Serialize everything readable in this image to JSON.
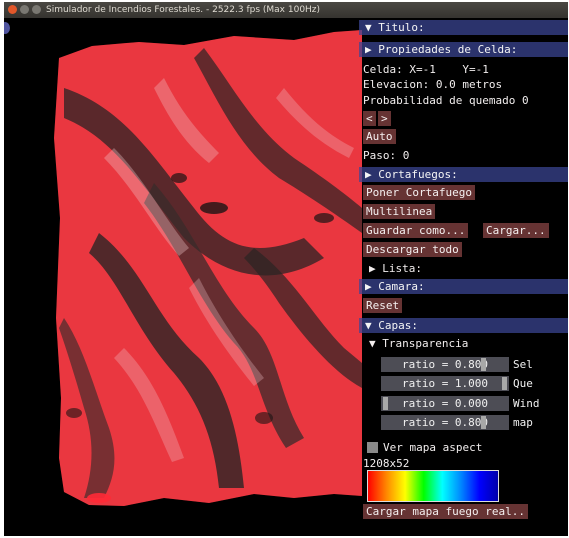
{
  "window": {
    "title": "Simulador de Incendios Forestales. - 2522.3 fps (Max 100Hz)"
  },
  "panel": {
    "header": "▼ Titulo:",
    "cell_props": {
      "header": "▶ Propiedades de Celda:",
      "cell": "Celda: X=-1    Y=-1",
      "elevation": "Elevacion: 0.0 metros",
      "burn_prob": "Probabilidad de quemado 0",
      "prev": "<",
      "next": ">",
      "auto": "Auto",
      "step": "Paso: 0"
    },
    "firebreaks": {
      "header": "▶ Cortafuegos:",
      "put": "Poner Cortafuego",
      "multiline": "Multilinea",
      "save_as": "Guardar como...",
      "load": "Cargar...",
      "download_all": "Descargar todo",
      "list": "▶ Lista:"
    },
    "camera": {
      "header": "▶ Camara:",
      "reset": "Reset"
    },
    "layers": {
      "header": "▼ Capas:",
      "transparency": "▼ Transparencia",
      "sliders": [
        {
          "text": "ratio = 0.800",
          "label": "Sel",
          "value": 0.8
        },
        {
          "text": "ratio = 1.000",
          "label": "Que",
          "value": 1.0
        },
        {
          "text": "ratio = 0.000",
          "label": "Wind",
          "value": 0.0
        },
        {
          "text": "ratio = 0.800",
          "label": "map",
          "value": 0.8
        }
      ],
      "aspect_checkbox": "Ver mapa aspect",
      "size": "1208x52",
      "load_fire": "Cargar mapa fuego real.."
    }
  },
  "colors": {
    "header_bg": "#3c4696",
    "button_bg": "#783c3c",
    "terrain_red": "#e3303a",
    "terrain_dark": "#2a2424"
  }
}
